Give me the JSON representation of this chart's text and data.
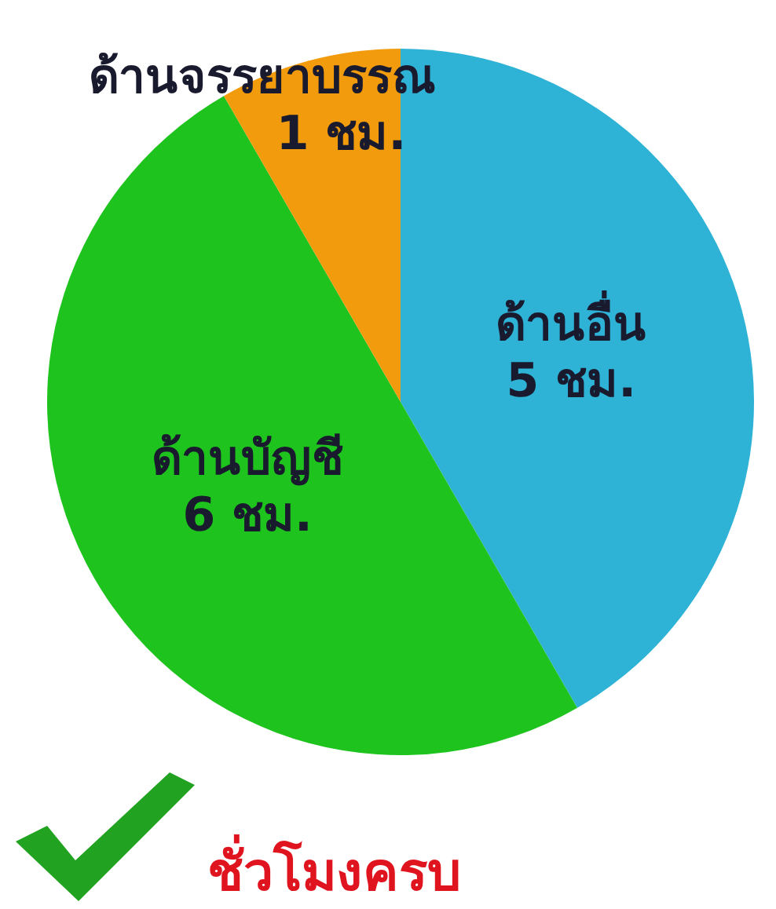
{
  "chart_data": {
    "type": "pie",
    "categories": [
      "ด้านอื่น",
      "ด้านบัญชี",
      "ด้านจรรยาบรรณ"
    ],
    "values": [
      5,
      6,
      1
    ],
    "value_labels": [
      "5 ชม.",
      "6 ชม.",
      "1 ชม."
    ],
    "colors": [
      "#2eb2d6",
      "#1ec31e",
      "#f29b0c"
    ],
    "annotations": [
      "ชั่วโมงครบ"
    ],
    "legend": false
  }
}
